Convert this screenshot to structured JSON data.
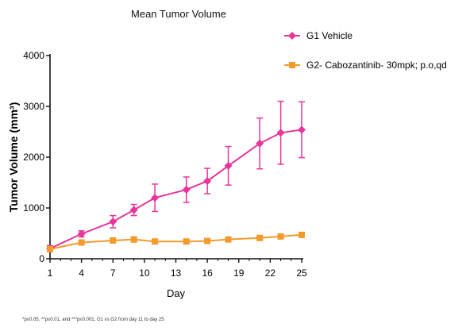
{
  "chart_data": {
    "type": "line",
    "title": "Mean Tumor Volume",
    "xlabel": "Day",
    "ylabel": "Tumor Volume (mm³)",
    "xlim": [
      1,
      25
    ],
    "ylim": [
      0,
      4000
    ],
    "xticks": [
      1,
      4,
      7,
      10,
      13,
      16,
      19,
      22,
      25
    ],
    "yticks": [
      0,
      1000,
      2000,
      3000,
      4000
    ],
    "grid": false,
    "legend": "top-right",
    "series": [
      {
        "name": "G1 Vehicle",
        "color": "#e8359a",
        "marker": "diamond",
        "x": [
          1,
          4,
          7,
          9,
          11,
          14,
          16,
          18,
          21,
          23,
          25
        ],
        "y": [
          200,
          490,
          730,
          960,
          1200,
          1360,
          1530,
          1830,
          2270,
          2480,
          2540
        ],
        "err": [
          60,
          60,
          120,
          110,
          270,
          250,
          250,
          380,
          500,
          620,
          550
        ]
      },
      {
        "name": "G2- Cabozantinib- 30mpk; p.o,qd",
        "color": "#f39a2b",
        "marker": "square",
        "x": [
          1,
          4,
          7,
          9,
          11,
          14,
          16,
          18,
          21,
          23,
          25
        ],
        "y": [
          190,
          320,
          360,
          380,
          340,
          340,
          350,
          380,
          410,
          440,
          470
        ],
        "err": [
          40,
          40,
          40,
          50,
          40,
          40,
          40,
          40,
          40,
          40,
          40
        ]
      }
    ]
  },
  "footnote": "*p≤0.05, **p≤0.01, and ***p≤0.001, G1 vs G2 from day 11 to day 25"
}
